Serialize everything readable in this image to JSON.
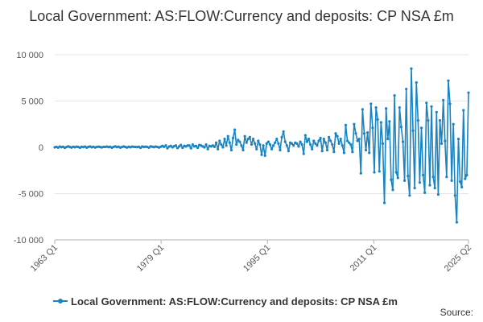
{
  "chart_title": "Local Government: AS:FLOW:Currency and deposits: CP NSA £m",
  "source_label": "Source:",
  "colors": {
    "series": "#1a83c1",
    "grid": "#e6e6e6",
    "axis": "#b0b0b0"
  },
  "chart_data": {
    "type": "line",
    "title": "Local Government: AS:FLOW:Currency and deposits: CP NSA £m",
    "xlabel": "",
    "ylabel": "",
    "ylim": [
      -10000,
      10000
    ],
    "yticks": [
      10000,
      5000,
      0,
      -5000,
      -10000
    ],
    "ytick_labels": [
      "10 000",
      "5 000",
      "0",
      "-5 000",
      "-10 000"
    ],
    "x_start": "1963 Q1",
    "x_end": "2025 Q2",
    "xticks": [
      "1963 Q1",
      "1979 Q1",
      "1995 Q1",
      "2011 Q1",
      "2025 Q2"
    ],
    "grid": true,
    "legend": "bottom",
    "series": [
      {
        "name": "Local Government: AS:FLOW:Currency and deposits: CP NSA £m",
        "values": [
          0,
          50,
          -30,
          80,
          20,
          60,
          -50,
          40,
          100,
          30,
          -20,
          60,
          10,
          70,
          40,
          -40,
          60,
          20,
          80,
          -30,
          50,
          90,
          10,
          60,
          -20,
          40,
          70,
          30,
          -10,
          50,
          40,
          80,
          20,
          60,
          -40,
          50,
          100,
          20,
          70,
          -30,
          40,
          90,
          30,
          -20,
          60,
          10,
          80,
          50,
          40,
          20,
          60,
          -50,
          90,
          30,
          70,
          40,
          -30,
          100,
          60,
          20,
          80,
          40,
          -20,
          60,
          150,
          50,
          200,
          -100,
          80,
          150,
          0,
          120,
          200,
          -80,
          100,
          250,
          -50,
          150,
          100,
          200,
          200,
          -100,
          300,
          100,
          150,
          -50,
          250,
          200,
          100,
          0,
          300,
          -200,
          150,
          100,
          200,
          50,
          500,
          -200,
          700,
          300,
          0,
          900,
          200,
          1200,
          500,
          -300,
          1000,
          1900,
          300,
          800,
          600,
          200,
          -300,
          1200,
          500,
          900,
          1100,
          300,
          900,
          400,
          -200,
          700,
          300,
          -800,
          200,
          -900,
          400,
          600,
          300,
          -200,
          200,
          500,
          900,
          400,
          -300,
          1100,
          1700,
          600,
          200,
          -400,
          500,
          400,
          200,
          500,
          400,
          100,
          600,
          300,
          -700,
          1300,
          600,
          900,
          300,
          -200,
          700,
          400,
          200,
          700,
          1000,
          -400,
          900,
          500,
          -300,
          1100,
          700,
          300,
          -500,
          1500,
          1200,
          400,
          900,
          200,
          -600,
          2400,
          700,
          500,
          300,
          -500,
          2500,
          1500,
          700,
          900,
          -2800,
          4100,
          1500,
          -300,
          1600,
          -600,
          4700,
          2100,
          -2700,
          4300,
          3000,
          -2600,
          2700,
          400,
          -6000,
          4200,
          900,
          2800,
          -3500,
          -4600,
          5600,
          -2700,
          -3300,
          4300,
          2200,
          600,
          -3600,
          6300,
          -3100,
          -5200,
          8500,
          1800,
          -4400,
          7000,
          2900,
          -3800,
          2100,
          -3000,
          -4900,
          4800,
          2900,
          -4100,
          4400,
          -3200,
          -4400,
          3800,
          -5100,
          2900,
          400,
          5100,
          700,
          -3200,
          7200,
          4700,
          -3600,
          2500,
          -5200,
          -8100,
          900,
          -3700,
          -4300,
          4000,
          -3400,
          -3000,
          5900
        ]
      }
    ]
  }
}
